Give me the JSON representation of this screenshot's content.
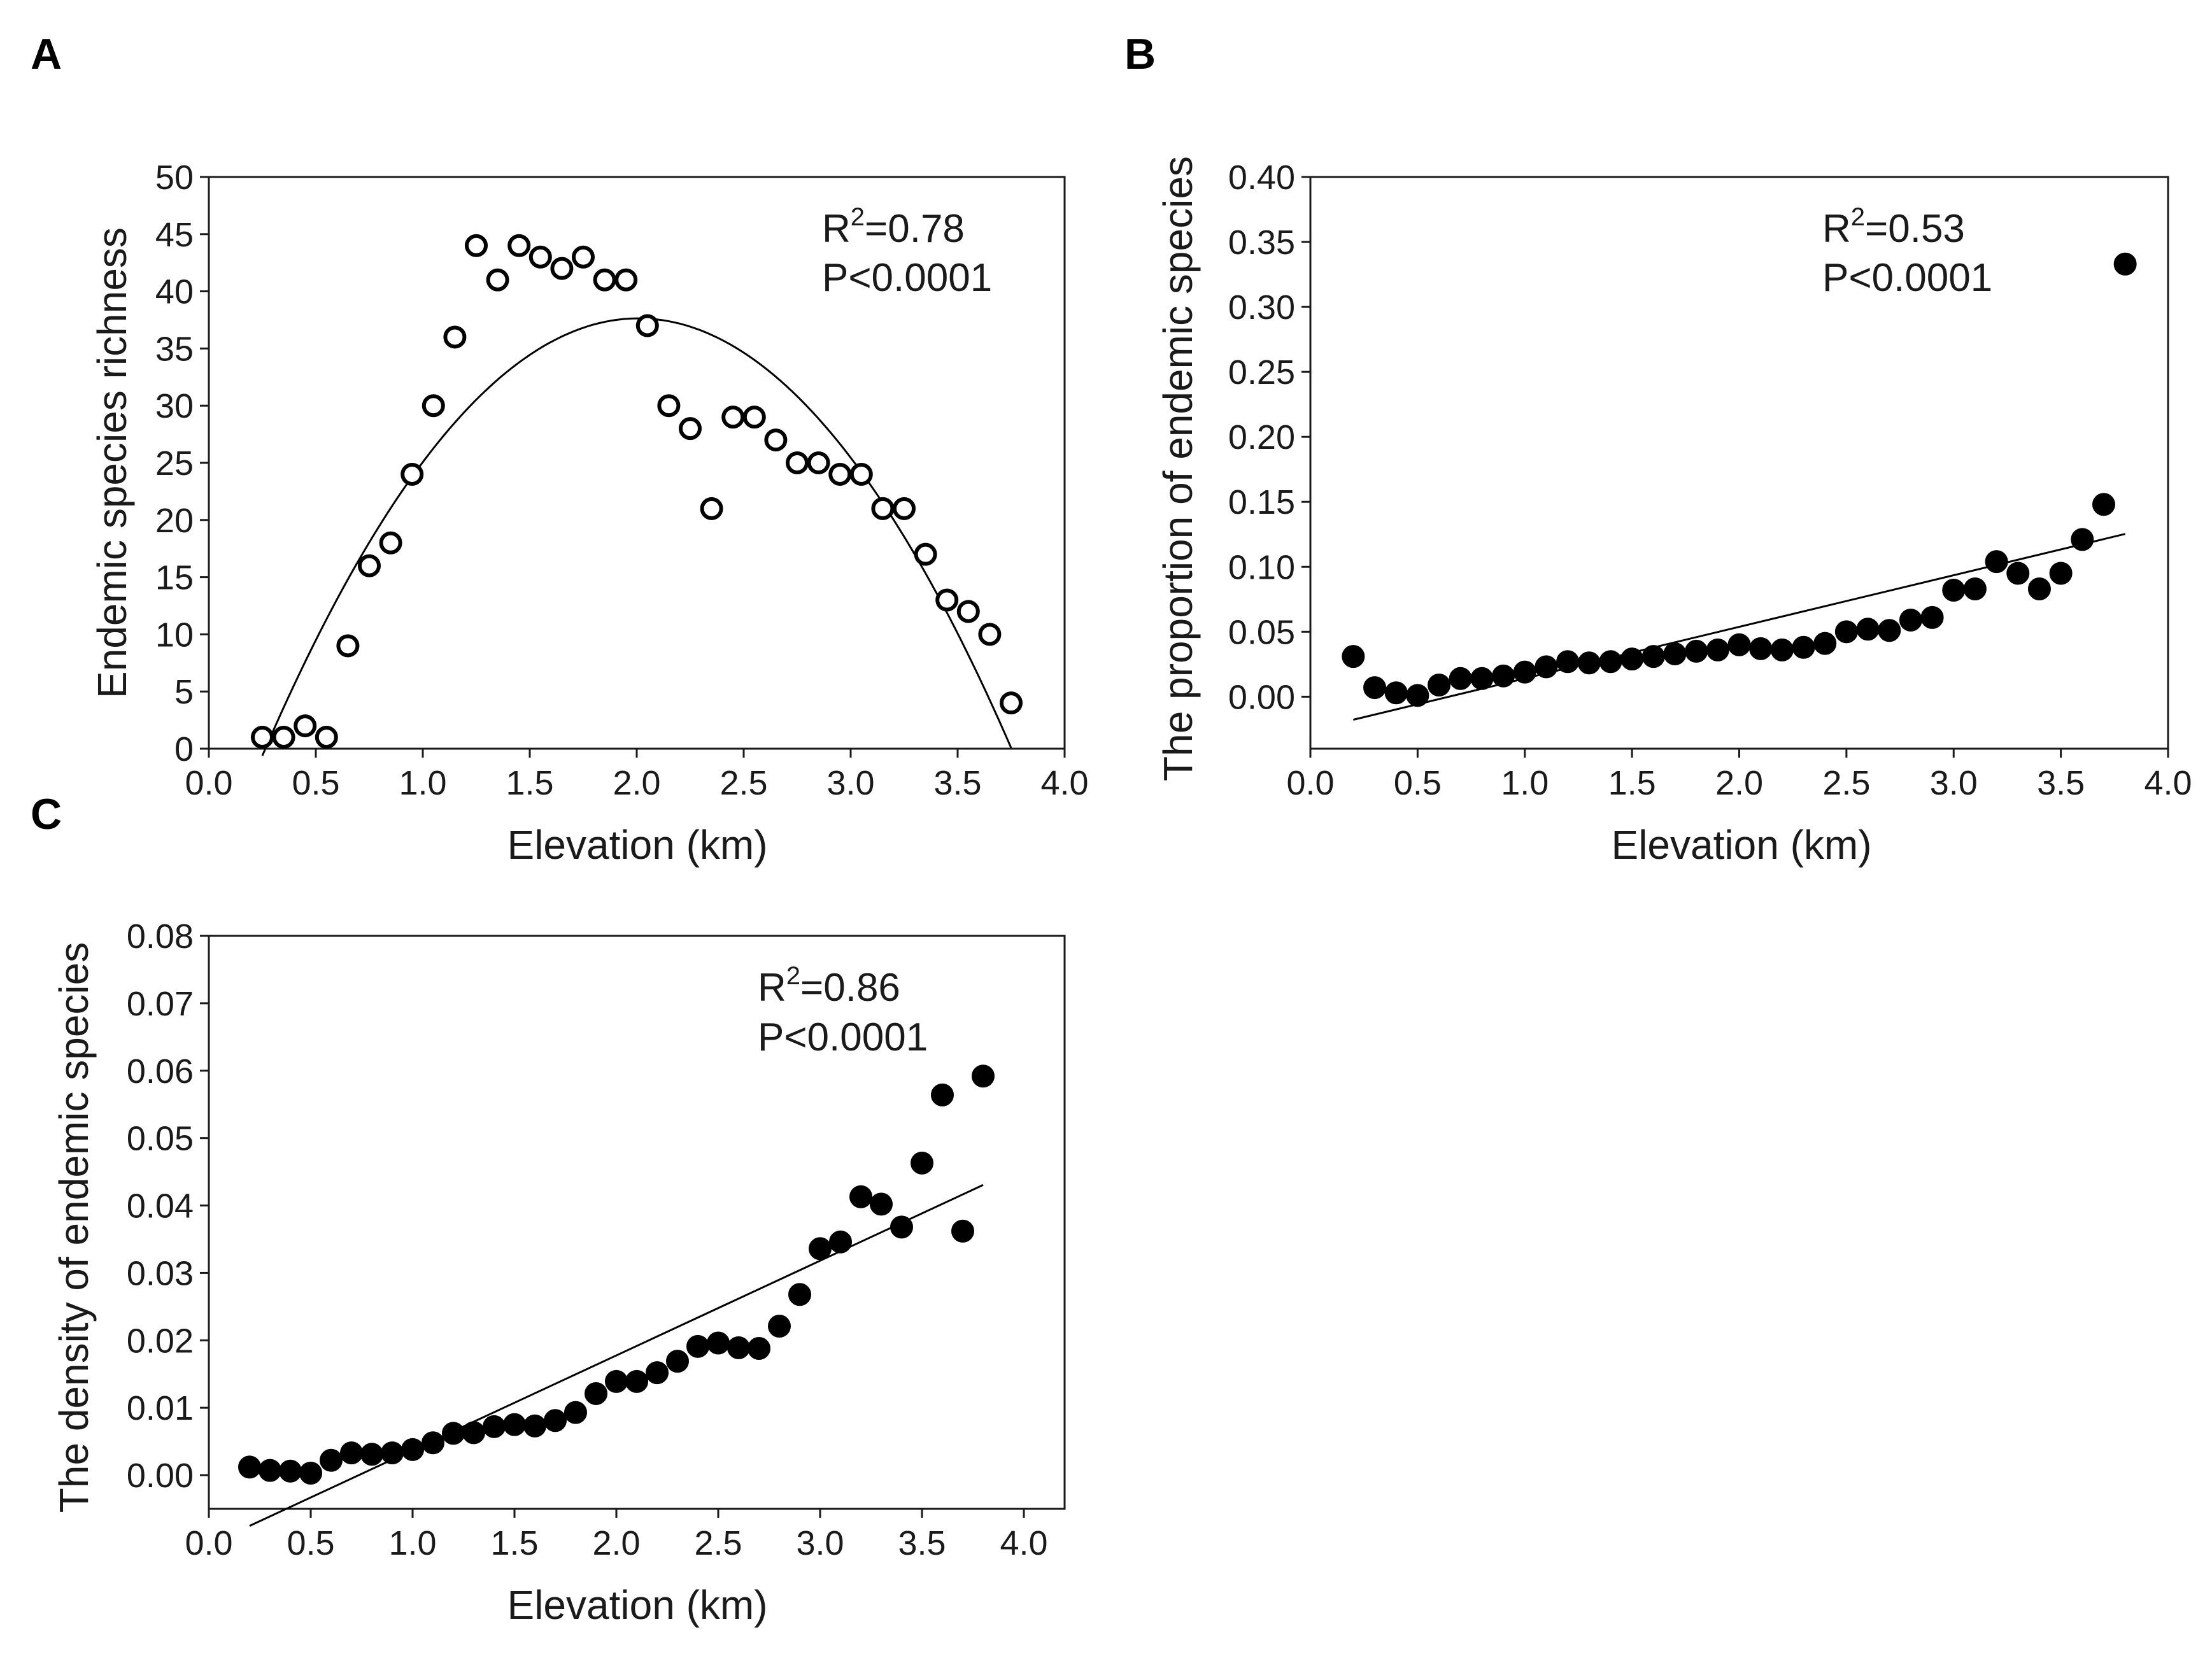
{
  "chart_data": [
    {
      "panel": "A",
      "type": "scatter",
      "marker": "open-circle",
      "xlabel": "Elevation (km)",
      "ylabel": "Endemic species richness",
      "xlim": [
        0.0,
        4.0
      ],
      "ylim": [
        0,
        50
      ],
      "xticks": [
        "0.0",
        "0.5",
        "1.0",
        "1.5",
        "2.0",
        "2.5",
        "3.0",
        "3.5",
        "4.0"
      ],
      "yticks": [
        "0",
        "5",
        "10",
        "15",
        "20",
        "25",
        "30",
        "35",
        "40",
        "45",
        "50"
      ],
      "r2_label": "R",
      "r2_value": "=0.78",
      "p_text": "P<0.0001",
      "fit": "quadratic",
      "fit_range": [
        0.25,
        3.75
      ],
      "x": [
        0.25,
        0.35,
        0.45,
        0.55,
        0.65,
        0.75,
        0.85,
        0.95,
        1.05,
        1.15,
        1.25,
        1.35,
        1.45,
        1.55,
        1.65,
        1.75,
        1.85,
        1.95,
        2.05,
        2.15,
        2.25,
        2.35,
        2.45,
        2.55,
        2.65,
        2.75,
        2.85,
        2.95,
        3.05,
        3.15,
        3.25,
        3.35,
        3.45,
        3.55,
        3.65,
        3.75
      ],
      "y": [
        1,
        1,
        2,
        1,
        9,
        16,
        18,
        24,
        30,
        36,
        44,
        41,
        44,
        43,
        42,
        43,
        41,
        41,
        37,
        30,
        28,
        21,
        29,
        29,
        27,
        25,
        25,
        24,
        24,
        21,
        21,
        17,
        13,
        12,
        10,
        4
      ]
    },
    {
      "panel": "B",
      "type": "scatter",
      "marker": "filled-circle",
      "xlabel": "Elevation (km)",
      "ylabel": "The proportion of endemic species",
      "xlim": [
        0.0,
        4.0
      ],
      "ylim": [
        -0.04,
        0.4
      ],
      "xticks": [
        "0.0",
        "0.5",
        "1.0",
        "1.5",
        "2.0",
        "2.5",
        "3.0",
        "3.5",
        "4.0"
      ],
      "yticks": [
        "0.00",
        "0.05",
        "0.10",
        "0.15",
        "0.20",
        "0.25",
        "0.30",
        "0.35",
        "0.40"
      ],
      "r2_label": "R",
      "r2_value": "=0.53",
      "p_text": "P<0.0001",
      "fit": "linear",
      "fit_range": [
        0.2,
        3.8
      ],
      "x": [
        0.2,
        0.3,
        0.4,
        0.5,
        0.6,
        0.7,
        0.8,
        0.9,
        1.0,
        1.1,
        1.2,
        1.3,
        1.4,
        1.5,
        1.6,
        1.7,
        1.8,
        1.9,
        2.0,
        2.1,
        2.2,
        2.3,
        2.4,
        2.5,
        2.6,
        2.7,
        2.8,
        2.9,
        3.0,
        3.1,
        3.2,
        3.3,
        3.4,
        3.5,
        3.6,
        3.7,
        3.8
      ],
      "y": [
        0.031,
        0.007,
        0.003,
        0.001,
        0.009,
        0.014,
        0.014,
        0.016,
        0.019,
        0.023,
        0.027,
        0.026,
        0.027,
        0.029,
        0.031,
        0.033,
        0.035,
        0.036,
        0.04,
        0.037,
        0.036,
        0.038,
        0.041,
        0.05,
        0.052,
        0.051,
        0.059,
        0.061,
        0.082,
        0.083,
        0.104,
        0.095,
        0.083,
        0.095,
        0.121,
        0.148,
        0.333
      ]
    },
    {
      "panel": "C",
      "type": "scatter",
      "marker": "filled-circle",
      "xlabel": "Elevation (km)",
      "ylabel": "The density of endemic species",
      "xlim": [
        0.0,
        4.2
      ],
      "ylim": [
        -0.005,
        0.08
      ],
      "xticks": [
        "0.0",
        "0.5",
        "1.0",
        "1.5",
        "2.0",
        "2.5",
        "3.0",
        "3.5",
        "4.0"
      ],
      "yticks": [
        "0.00",
        "0.01",
        "0.02",
        "0.03",
        "0.04",
        "0.05",
        "0.06",
        "0.07",
        "0.08"
      ],
      "r2_label": "R",
      "r2_value": "=0.86",
      "p_text": "P<0.0001",
      "fit": "linear",
      "fit_range": [
        0.2,
        3.8
      ],
      "x": [
        0.2,
        0.3,
        0.4,
        0.5,
        0.6,
        0.7,
        0.8,
        0.9,
        1.0,
        1.1,
        1.2,
        1.3,
        1.4,
        1.5,
        1.6,
        1.7,
        1.8,
        1.9,
        2.0,
        2.1,
        2.2,
        2.3,
        2.4,
        2.5,
        2.6,
        2.7,
        2.8,
        2.9,
        3.0,
        3.1,
        3.2,
        3.3,
        3.4,
        3.5,
        3.6,
        3.7,
        3.8
      ],
      "y": [
        0.0012,
        0.0007,
        0.0006,
        0.0003,
        0.0022,
        0.0033,
        0.0031,
        0.0033,
        0.0038,
        0.0048,
        0.0062,
        0.0063,
        0.0072,
        0.0075,
        0.0073,
        0.0081,
        0.0093,
        0.0121,
        0.0139,
        0.0139,
        0.0152,
        0.0169,
        0.0191,
        0.0196,
        0.0189,
        0.0188,
        0.0221,
        0.0268,
        0.0336,
        0.0346,
        0.0413,
        0.0402,
        0.0368,
        0.0463,
        0.0564,
        0.0362,
        0.0592
      ]
    }
  ]
}
